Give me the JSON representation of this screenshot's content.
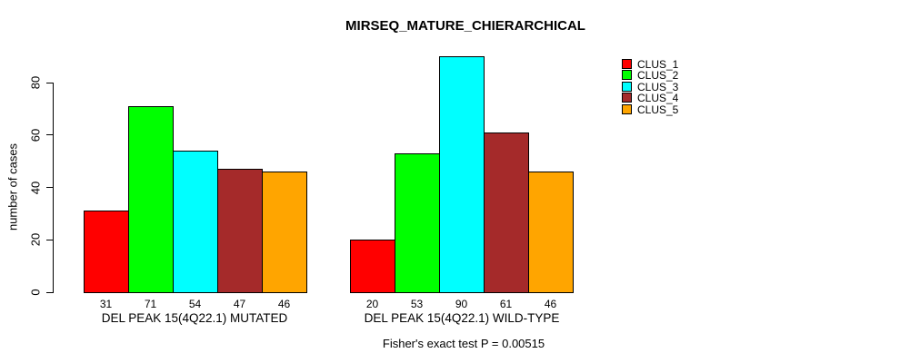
{
  "chart_data": {
    "type": "bar",
    "title": "MIRSEQ_MATURE_CHIERARCHICAL",
    "ylabel": "number of cases",
    "xlabel": "",
    "annotation": "Fisher's exact test P = 0.00515",
    "yticks": [
      0,
      20,
      40,
      60,
      80
    ],
    "ylim": [
      0,
      93
    ],
    "grid": false,
    "legend_position": "right-outside",
    "series_names": [
      "CLUS_1",
      "CLUS_2",
      "CLUS_3",
      "CLUS_4",
      "CLUS_5"
    ],
    "colors": [
      "#FF0000",
      "#00FF00",
      "#00FFFF",
      "#A52A2A",
      "#FFA500"
    ],
    "groups": [
      {
        "label": "DEL PEAK 15(4Q22.1) MUTATED",
        "values": [
          31,
          71,
          54,
          47,
          46
        ]
      },
      {
        "label": "DEL PEAK 15(4Q22.1) WILD-TYPE",
        "values": [
          20,
          53,
          90,
          61,
          46
        ]
      }
    ],
    "bar_value_labels_shown": true
  },
  "legend": {
    "items": [
      {
        "label": "CLUS_1",
        "color": "#FF0000"
      },
      {
        "label": "CLUS_2",
        "color": "#00FF00"
      },
      {
        "label": "CLUS_3",
        "color": "#00FFFF"
      },
      {
        "label": "CLUS_4",
        "color": "#A52A2A"
      },
      {
        "label": "CLUS_5",
        "color": "#FFA500"
      }
    ]
  }
}
